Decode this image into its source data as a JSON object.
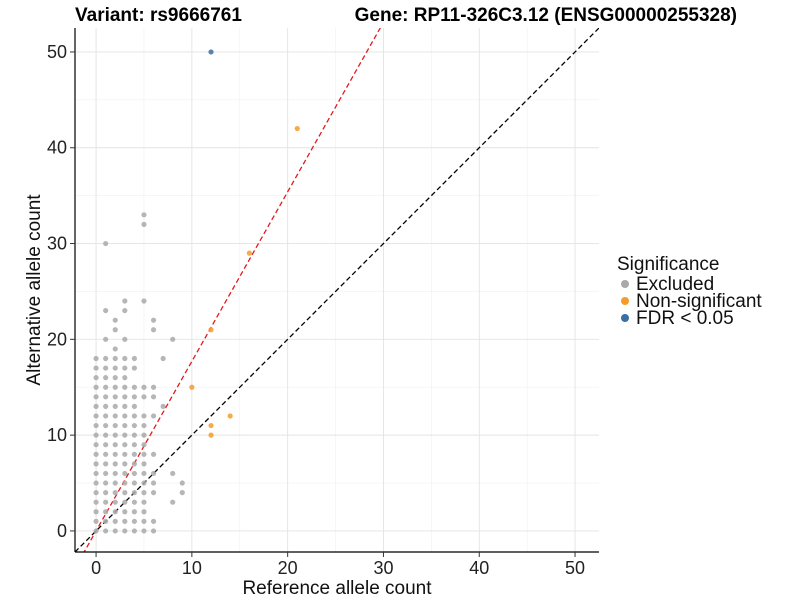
{
  "titles": {
    "variant": "Variant: rs9666761",
    "gene": "Gene: RP11-326C3.12 (ENSG00000255328)"
  },
  "legend": {
    "title": "Significance",
    "items": [
      {
        "label": "Excluded",
        "color": "#a9a9a9"
      },
      {
        "label": "Non-significant",
        "color": "#f39c2b"
      },
      {
        "label": "FDR < 0.05",
        "color": "#3b6ea5"
      }
    ]
  },
  "chart_data": {
    "type": "scatter",
    "xlabel": "Reference allele count",
    "ylabel": "Alternative allele count",
    "xlim": [
      -2.2,
      52.5
    ],
    "ylim": [
      -2.2,
      52.5
    ],
    "xticks": [
      0,
      10,
      20,
      30,
      40,
      50
    ],
    "yticks": [
      0,
      10,
      20,
      30,
      40,
      50
    ],
    "grid": true,
    "legend_position": "right",
    "reference_lines": [
      {
        "name": "identity",
        "slope": 1,
        "intercept": 0,
        "color": "#000000",
        "style": "dashed"
      },
      {
        "name": "fit",
        "slope": 1.77,
        "intercept": 0,
        "color": "#e31a1c",
        "style": "dashed"
      }
    ],
    "series": [
      {
        "name": "Excluded",
        "color": "#a9a9a9",
        "points": [
          [
            0,
            0
          ],
          [
            0,
            1
          ],
          [
            0,
            2
          ],
          [
            0,
            3
          ],
          [
            0,
            4
          ],
          [
            0,
            5
          ],
          [
            0,
            6
          ],
          [
            0,
            7
          ],
          [
            0,
            8
          ],
          [
            0,
            9
          ],
          [
            0,
            10
          ],
          [
            0,
            11
          ],
          [
            0,
            12
          ],
          [
            0,
            13
          ],
          [
            0,
            14
          ],
          [
            0,
            15
          ],
          [
            0,
            16
          ],
          [
            0,
            17
          ],
          [
            0,
            18
          ],
          [
            1,
            0
          ],
          [
            1,
            1
          ],
          [
            1,
            2
          ],
          [
            1,
            3
          ],
          [
            1,
            4
          ],
          [
            1,
            5
          ],
          [
            1,
            6
          ],
          [
            1,
            7
          ],
          [
            1,
            8
          ],
          [
            1,
            9
          ],
          [
            1,
            10
          ],
          [
            1,
            11
          ],
          [
            1,
            12
          ],
          [
            1,
            13
          ],
          [
            1,
            14
          ],
          [
            1,
            15
          ],
          [
            1,
            16
          ],
          [
            1,
            17
          ],
          [
            1,
            18
          ],
          [
            1,
            20
          ],
          [
            1,
            23
          ],
          [
            1,
            30
          ],
          [
            2,
            0
          ],
          [
            2,
            1
          ],
          [
            2,
            2
          ],
          [
            2,
            3
          ],
          [
            2,
            4
          ],
          [
            2,
            5
          ],
          [
            2,
            6
          ],
          [
            2,
            7
          ],
          [
            2,
            8
          ],
          [
            2,
            9
          ],
          [
            2,
            10
          ],
          [
            2,
            11
          ],
          [
            2,
            12
          ],
          [
            2,
            13
          ],
          [
            2,
            14
          ],
          [
            2,
            15
          ],
          [
            2,
            16
          ],
          [
            2,
            17
          ],
          [
            2,
            18
          ],
          [
            2,
            19
          ],
          [
            2,
            21
          ],
          [
            2,
            22
          ],
          [
            3,
            0
          ],
          [
            3,
            1
          ],
          [
            3,
            2
          ],
          [
            3,
            3
          ],
          [
            3,
            4
          ],
          [
            3,
            5
          ],
          [
            3,
            6
          ],
          [
            3,
            7
          ],
          [
            3,
            8
          ],
          [
            3,
            9
          ],
          [
            3,
            10
          ],
          [
            3,
            11
          ],
          [
            3,
            12
          ],
          [
            3,
            13
          ],
          [
            3,
            14
          ],
          [
            3,
            15
          ],
          [
            3,
            16
          ],
          [
            3,
            17
          ],
          [
            3,
            18
          ],
          [
            3,
            20
          ],
          [
            3,
            23
          ],
          [
            3,
            24
          ],
          [
            4,
            0
          ],
          [
            4,
            1
          ],
          [
            4,
            2
          ],
          [
            4,
            3
          ],
          [
            4,
            4
          ],
          [
            4,
            5
          ],
          [
            4,
            6
          ],
          [
            4,
            7
          ],
          [
            4,
            8
          ],
          [
            4,
            9
          ],
          [
            4,
            10
          ],
          [
            4,
            11
          ],
          [
            4,
            12
          ],
          [
            4,
            13
          ],
          [
            4,
            14
          ],
          [
            4,
            15
          ],
          [
            4,
            17
          ],
          [
            4,
            18
          ],
          [
            5,
            0
          ],
          [
            5,
            1
          ],
          [
            5,
            2
          ],
          [
            5,
            3
          ],
          [
            5,
            4
          ],
          [
            5,
            5
          ],
          [
            5,
            6
          ],
          [
            5,
            7
          ],
          [
            5,
            8
          ],
          [
            5,
            9
          ],
          [
            5,
            10
          ],
          [
            5,
            11
          ],
          [
            5,
            12
          ],
          [
            5,
            14
          ],
          [
            5,
            15
          ],
          [
            5,
            24
          ],
          [
            5,
            32
          ],
          [
            5,
            33
          ],
          [
            6,
            0
          ],
          [
            6,
            1
          ],
          [
            6,
            4
          ],
          [
            6,
            5
          ],
          [
            6,
            6
          ],
          [
            6,
            8
          ],
          [
            6,
            12
          ],
          [
            6,
            14
          ],
          [
            6,
            15
          ],
          [
            6,
            21
          ],
          [
            6,
            22
          ],
          [
            7,
            13
          ],
          [
            7,
            18
          ],
          [
            8,
            3
          ],
          [
            8,
            6
          ],
          [
            8,
            20
          ],
          [
            9,
            4
          ],
          [
            9,
            5
          ]
        ]
      },
      {
        "name": "Non-significant",
        "color": "#f39c2b",
        "points": [
          [
            10,
            15
          ],
          [
            12,
            10
          ],
          [
            12,
            11
          ],
          [
            12,
            21
          ],
          [
            14,
            12
          ],
          [
            16,
            29
          ],
          [
            21,
            42
          ]
        ]
      },
      {
        "name": "FDR < 0.05",
        "color": "#3b6ea5",
        "points": [
          [
            12,
            50
          ]
        ]
      }
    ]
  }
}
